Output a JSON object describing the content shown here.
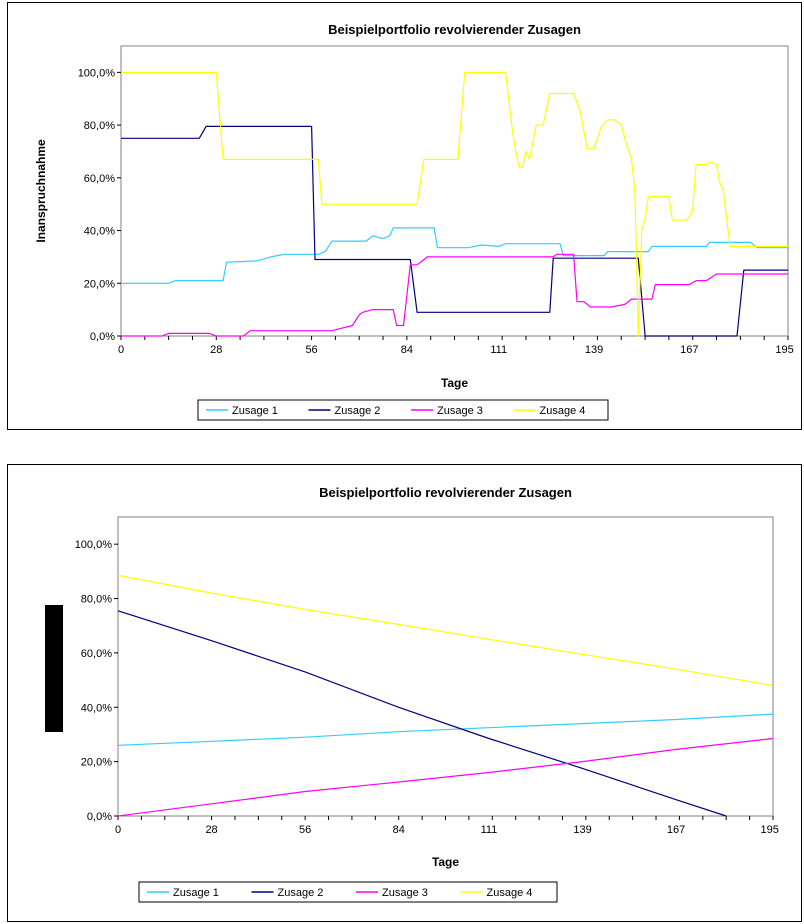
{
  "chart_data": [
    {
      "type": "line",
      "title": "Beispielportfolio revolvierender Zusagen",
      "xlabel": "Tage",
      "ylabel": "Inanspruchnahme",
      "xlim": [
        0,
        196
      ],
      "ylim": [
        0,
        1.1
      ],
      "x_ticks": [
        "0",
        "28",
        "56",
        "84",
        "111",
        "139",
        "167",
        "195"
      ],
      "x_tick_values": [
        0,
        28,
        56,
        84,
        111,
        139,
        167,
        195
      ],
      "y_ticks": [
        "0,0%",
        "20,0%",
        "40,0%",
        "60,0%",
        "80,0%",
        "100,0%"
      ],
      "y_tick_values": [
        0,
        0.2,
        0.4,
        0.6,
        0.8,
        1.0
      ],
      "grid": false,
      "legend": "bottom",
      "series": [
        {
          "name": "Zusage 1",
          "color": "#33CCFF",
          "step": true,
          "points": [
            [
              0,
              0.2
            ],
            [
              14,
              0.2
            ],
            [
              16,
              0.21
            ],
            [
              30,
              0.21
            ],
            [
              31,
              0.28
            ],
            [
              40,
              0.285
            ],
            [
              44,
              0.3
            ],
            [
              48,
              0.31
            ],
            [
              58,
              0.31
            ],
            [
              60,
              0.32
            ],
            [
              62,
              0.36
            ],
            [
              72,
              0.36
            ],
            [
              74,
              0.38
            ],
            [
              77,
              0.37
            ],
            [
              79,
              0.38
            ],
            [
              80,
              0.41
            ],
            [
              92,
              0.41
            ],
            [
              93,
              0.335
            ],
            [
              102,
              0.335
            ],
            [
              106,
              0.345
            ],
            [
              111,
              0.34
            ],
            [
              113,
              0.35
            ],
            [
              129,
              0.35
            ],
            [
              130,
              0.305
            ],
            [
              142,
              0.305
            ],
            [
              143,
              0.32
            ],
            [
              155,
              0.32
            ],
            [
              156,
              0.34
            ],
            [
              172,
              0.34
            ],
            [
              173,
              0.355
            ],
            [
              185,
              0.355
            ],
            [
              187,
              0.335
            ],
            [
              196,
              0.335
            ]
          ]
        },
        {
          "name": "Zusage 2",
          "color": "#000080",
          "step": true,
          "points": [
            [
              0,
              0.75
            ],
            [
              23,
              0.75
            ],
            [
              25,
              0.795
            ],
            [
              56,
              0.795
            ],
            [
              57,
              0.29
            ],
            [
              85,
              0.29
            ],
            [
              87,
              0.09
            ],
            [
              126,
              0.09
            ],
            [
              127,
              0.295
            ],
            [
              152,
              0.295
            ],
            [
              154,
              0.0
            ],
            [
              181,
              0.0
            ],
            [
              183,
              0.25
            ],
            [
              196,
              0.25
            ]
          ]
        },
        {
          "name": "Zusage 3",
          "color": "#FF00FF",
          "step": true,
          "points": [
            [
              0,
              0.0
            ],
            [
              12,
              0.0
            ],
            [
              14,
              0.01
            ],
            [
              26,
              0.01
            ],
            [
              28,
              0.0
            ],
            [
              36,
              0.0
            ],
            [
              38,
              0.02
            ],
            [
              62,
              0.02
            ],
            [
              65,
              0.03
            ],
            [
              68,
              0.04
            ],
            [
              70,
              0.08
            ],
            [
              71,
              0.09
            ],
            [
              74,
              0.1
            ],
            [
              80,
              0.1
            ],
            [
              81,
              0.04
            ],
            [
              83,
              0.04
            ],
            [
              85,
              0.27
            ],
            [
              87,
              0.27
            ],
            [
              90,
              0.3
            ],
            [
              127,
              0.3
            ],
            [
              128,
              0.31
            ],
            [
              133,
              0.31
            ],
            [
              134,
              0.13
            ],
            [
              136,
              0.13
            ],
            [
              138,
              0.11
            ],
            [
              144,
              0.11
            ],
            [
              148,
              0.12
            ],
            [
              150,
              0.14
            ],
            [
              156,
              0.14
            ],
            [
              157,
              0.195
            ],
            [
              167,
              0.195
            ],
            [
              169,
              0.21
            ],
            [
              172,
              0.21
            ],
            [
              175,
              0.235
            ],
            [
              196,
              0.235
            ]
          ]
        },
        {
          "name": "Zusage 4",
          "color": "#FFFF00",
          "step": true,
          "points": [
            [
              0,
              1.0
            ],
            [
              28,
              1.0
            ],
            [
              30,
              0.67
            ],
            [
              58,
              0.67
            ],
            [
              59,
              0.5
            ],
            [
              87,
              0.5
            ],
            [
              89,
              0.67
            ],
            [
              99,
              0.67
            ],
            [
              101,
              1.0
            ],
            [
              113,
              1.0
            ],
            [
              115,
              0.78
            ],
            [
              116,
              0.7
            ],
            [
              117,
              0.64
            ],
            [
              118,
              0.64
            ],
            [
              119,
              0.7
            ],
            [
              120,
              0.67
            ],
            [
              122,
              0.8
            ],
            [
              124,
              0.8
            ],
            [
              126,
              0.92
            ],
            [
              133,
              0.92
            ],
            [
              135,
              0.85
            ],
            [
              137,
              0.71
            ],
            [
              139,
              0.71
            ],
            [
              141,
              0.79
            ],
            [
              143,
              0.82
            ],
            [
              145,
              0.82
            ],
            [
              147,
              0.8
            ],
            [
              148,
              0.75
            ],
            [
              150,
              0.67
            ],
            [
              151,
              0.55
            ],
            [
              152,
              0.0
            ],
            [
              153,
              0.4
            ],
            [
              154,
              0.45
            ],
            [
              155,
              0.53
            ],
            [
              161,
              0.53
            ],
            [
              162,
              0.44
            ],
            [
              166,
              0.44
            ],
            [
              167,
              0.45
            ],
            [
              168,
              0.48
            ],
            [
              169,
              0.65
            ],
            [
              172,
              0.65
            ],
            [
              173,
              0.66
            ],
            [
              175,
              0.65
            ],
            [
              176,
              0.58
            ],
            [
              177,
              0.55
            ],
            [
              179,
              0.34
            ],
            [
              196,
              0.34
            ]
          ]
        }
      ]
    },
    {
      "type": "line",
      "title": "Beispielportfolio revolvierender Zusagen",
      "xlabel": "Tage",
      "ylabel": "",
      "xlim": [
        0,
        196
      ],
      "ylim": [
        0,
        1.1
      ],
      "x_ticks": [
        "0",
        "28",
        "56",
        "84",
        "111",
        "139",
        "167",
        "195"
      ],
      "x_tick_values": [
        0,
        28,
        56,
        84,
        111,
        139,
        167,
        195
      ],
      "y_ticks": [
        "0,0%",
        "20,0%",
        "40,0%",
        "60,0%",
        "80,0%",
        "100,0%"
      ],
      "y_tick_values": [
        0,
        0.2,
        0.4,
        0.6,
        0.8,
        1.0
      ],
      "grid": false,
      "legend": "bottom",
      "series": [
        {
          "name": "Zusage 1",
          "color": "#33CCFF",
          "step": false,
          "points": [
            [
              0,
              0.26
            ],
            [
              28,
              0.275
            ],
            [
              56,
              0.29
            ],
            [
              84,
              0.31
            ],
            [
              111,
              0.325
            ],
            [
              139,
              0.34
            ],
            [
              167,
              0.355
            ],
            [
              196,
              0.375
            ]
          ]
        },
        {
          "name": "Zusage 2",
          "color": "#000080",
          "step": false,
          "points": [
            [
              0,
              0.755
            ],
            [
              28,
              0.645
            ],
            [
              56,
              0.53
            ],
            [
              84,
              0.4
            ],
            [
              111,
              0.285
            ],
            [
              139,
              0.175
            ],
            [
              167,
              0.06
            ],
            [
              182,
              0.0
            ]
          ]
        },
        {
          "name": "Zusage 3",
          "color": "#FF00FF",
          "step": false,
          "points": [
            [
              0,
              0.0
            ],
            [
              28,
              0.045
            ],
            [
              56,
              0.09
            ],
            [
              84,
              0.125
            ],
            [
              111,
              0.16
            ],
            [
              139,
              0.2
            ],
            [
              167,
              0.245
            ],
            [
              196,
              0.285
            ]
          ]
        },
        {
          "name": "Zusage 4",
          "color": "#FFFF00",
          "step": false,
          "points": [
            [
              0,
              0.885
            ],
            [
              28,
              0.82
            ],
            [
              56,
              0.76
            ],
            [
              84,
              0.705
            ],
            [
              111,
              0.65
            ],
            [
              139,
              0.595
            ],
            [
              167,
              0.54
            ],
            [
              196,
              0.48
            ]
          ]
        }
      ]
    }
  ]
}
